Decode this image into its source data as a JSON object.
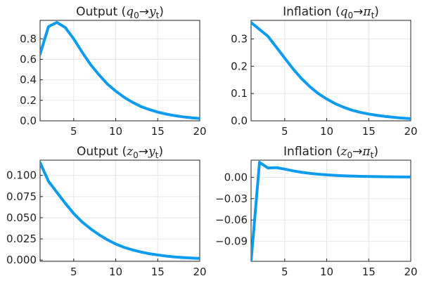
{
  "style": {
    "line_color": "#0d9bef",
    "line_width": 4,
    "grid": true,
    "legend": "none"
  },
  "chart_data": [
    {
      "type": "line",
      "title_parts": [
        "Output (",
        "q",
        "0",
        "→",
        "y",
        "t",
        ")"
      ],
      "xlim": [
        1,
        20
      ],
      "ylim": [
        0,
        0.98
      ],
      "xticks": [
        5,
        10,
        15,
        20
      ],
      "yticks": [
        0.0,
        0.2,
        0.4,
        0.6,
        0.8
      ],
      "ytick_labels": [
        "0.0",
        "0.2",
        "0.4",
        "0.6",
        "0.8"
      ],
      "x": [
        1,
        2,
        3,
        4,
        5,
        6,
        7,
        8,
        9,
        10,
        11,
        12,
        13,
        14,
        15,
        16,
        17,
        18,
        19,
        20
      ],
      "y": [
        0.65,
        0.92,
        0.96,
        0.91,
        0.8,
        0.67,
        0.55,
        0.45,
        0.36,
        0.29,
        0.23,
        0.18,
        0.14,
        0.11,
        0.085,
        0.066,
        0.051,
        0.039,
        0.03,
        0.023
      ]
    },
    {
      "type": "line",
      "title_parts": [
        "Inflation (",
        "q",
        "0",
        "→",
        "π",
        "t",
        ")"
      ],
      "xlim": [
        1,
        20
      ],
      "ylim": [
        0,
        0.368
      ],
      "xticks": [
        5,
        10,
        15,
        20
      ],
      "yticks": [
        0.0,
        0.1,
        0.2,
        0.3
      ],
      "ytick_labels": [
        "0.0",
        "0.1",
        "0.2",
        "0.3"
      ],
      "x": [
        1,
        2,
        3,
        4,
        5,
        6,
        7,
        8,
        9,
        10,
        11,
        12,
        13,
        14,
        15,
        16,
        17,
        18,
        19,
        20
      ],
      "y": [
        0.36,
        0.335,
        0.31,
        0.27,
        0.23,
        0.19,
        0.155,
        0.125,
        0.1,
        0.08,
        0.063,
        0.05,
        0.039,
        0.031,
        0.025,
        0.02,
        0.016,
        0.013,
        0.01,
        0.008
      ]
    },
    {
      "type": "line",
      "title_parts": [
        "Output (",
        "z",
        "0",
        "→",
        "y",
        "t",
        ")"
      ],
      "xlim": [
        1,
        20
      ],
      "ylim": [
        -0.0015,
        0.118
      ],
      "xticks": [
        5,
        10,
        15,
        20
      ],
      "yticks": [
        0.0,
        0.025,
        0.05,
        0.075,
        0.1
      ],
      "ytick_labels": [
        "0.000",
        "0.025",
        "0.050",
        "0.075",
        "0.100"
      ],
      "x": [
        1,
        2,
        3,
        4,
        5,
        6,
        7,
        8,
        9,
        10,
        11,
        12,
        13,
        14,
        15,
        16,
        17,
        18,
        19,
        20
      ],
      "y": [
        0.115,
        0.093,
        0.08,
        0.067,
        0.055,
        0.045,
        0.037,
        0.03,
        0.024,
        0.019,
        0.015,
        0.012,
        0.0095,
        0.0075,
        0.006,
        0.0047,
        0.0037,
        0.003,
        0.0024,
        0.0019
      ]
    },
    {
      "type": "line",
      "title_parts": [
        "Inflation (",
        "z",
        "0",
        "→",
        "π",
        "t",
        ")"
      ],
      "xlim": [
        1,
        20
      ],
      "ylim": [
        -0.118,
        0.024
      ],
      "xticks": [
        5,
        10,
        15,
        20
      ],
      "yticks": [
        0.0,
        -0.03,
        -0.06,
        -0.09
      ],
      "ytick_labels": [
        "0.00",
        "−0.03",
        "−0.06",
        "−0.09"
      ],
      "x": [
        1,
        2,
        3,
        4,
        5,
        6,
        7,
        8,
        9,
        10,
        11,
        12,
        13,
        14,
        15,
        16,
        17,
        18,
        19,
        20
      ],
      "y": [
        -0.118,
        0.021,
        0.013,
        0.0135,
        0.0115,
        0.009,
        0.007,
        0.0055,
        0.0043,
        0.0034,
        0.0027,
        0.0021,
        0.0017,
        0.0013,
        0.0011,
        0.0009,
        0.0007,
        0.0006,
        0.0005,
        0.0004
      ]
    }
  ]
}
